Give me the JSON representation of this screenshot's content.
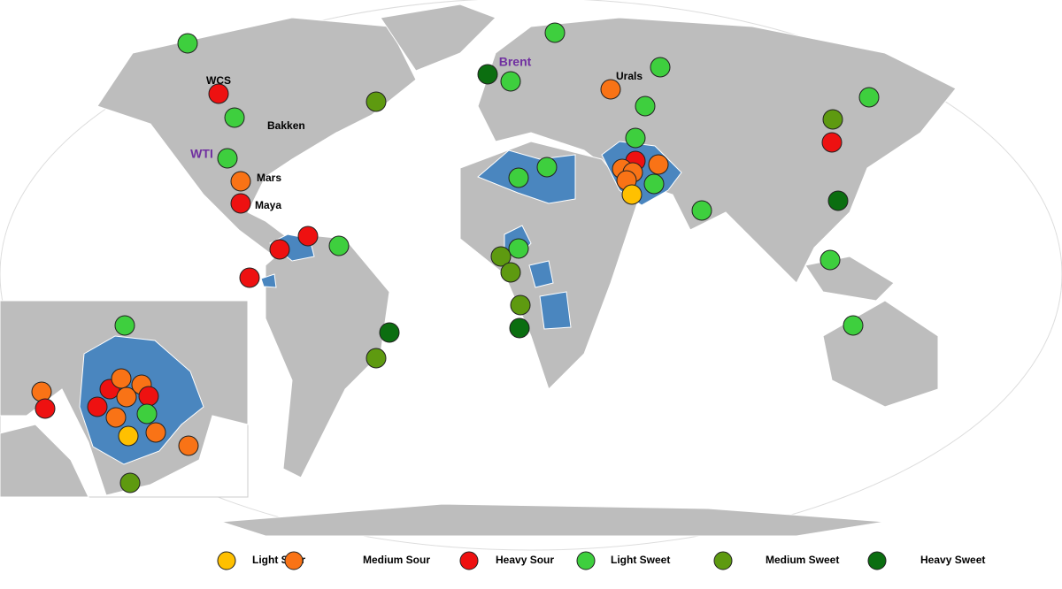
{
  "labels": [
    {
      "text": "WCS",
      "color": "#000000"
    },
    {
      "text": "Bakken",
      "color": "#000000"
    },
    {
      "text": "WTI",
      "color": "#7030a0"
    },
    {
      "text": "Mars",
      "color": "#000000"
    },
    {
      "text": "Maya",
      "color": "#000000"
    },
    {
      "text": "Brent",
      "color": "#7030a0"
    },
    {
      "text": "Urals",
      "color": "#000000"
    }
  ],
  "legend": [
    {
      "name": "Light Sour",
      "color": "#ffc000"
    },
    {
      "name": "Medium  Sour",
      "color": "#f97316"
    },
    {
      "name": "Heavy Sour",
      "color": "#ee1111"
    },
    {
      "name": "Light Sweet",
      "color": "#3ecf3e"
    },
    {
      "name": "Medium Sweet",
      "color": "#5e9a10"
    },
    {
      "name": "Heavy Sweet",
      "color": "#0b6e10"
    }
  ]
}
